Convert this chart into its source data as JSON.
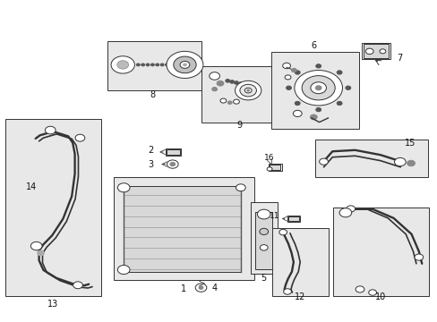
{
  "bg_color": "#ffffff",
  "fill_gray": "#e8e8e8",
  "light_gray": "#d8d8d8",
  "dark": "#333333",
  "med": "#888888",
  "label_fontsize": 7
}
